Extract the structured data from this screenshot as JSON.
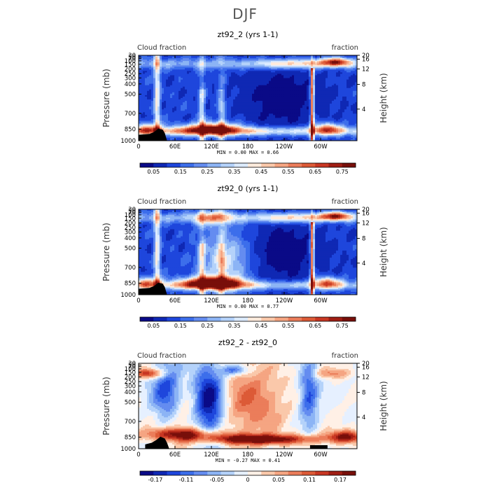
{
  "figure_title": "DJF",
  "chart_data": [
    {
      "type": "heatmap",
      "title": "zt92_2 (yrs 1-1)",
      "left_label": "Cloud fraction",
      "right_label": "fraction",
      "ylabel": "Pressure (mb)",
      "y2label": "Height (km)",
      "xticks": [
        "0",
        "60E",
        "120E",
        "180",
        "120W",
        "60W"
      ],
      "yticks": [
        "1000",
        "850",
        "700",
        "500",
        "400",
        "300",
        "250",
        "200",
        "150",
        "100",
        "70",
        "50",
        "30"
      ],
      "y2ticks": [
        "4",
        "8",
        "12",
        "16",
        "20"
      ],
      "stats": "MIN =     0.00   MAX =     0.66",
      "colorbar_labels": [
        "0.05",
        "0.15",
        "0.25",
        "0.35",
        "0.45",
        "0.55",
        "0.65",
        "0.75"
      ],
      "colors": [
        "#0a0a87",
        "#0f28b4",
        "#1e46dc",
        "#3c6eeb",
        "#648cf0",
        "#8cb4f5",
        "#b4d2fa",
        "#dcebff",
        "#ffebdc",
        "#fac8aa",
        "#f5a582",
        "#eb7d5a",
        "#dc5a37",
        "#c83723",
        "#a01e14",
        "#780f0a"
      ]
    },
    {
      "type": "heatmap",
      "title": "zt92_0 (yrs 1-1)",
      "left_label": "Cloud fraction",
      "right_label": "fraction",
      "ylabel": "Pressure (mb)",
      "y2label": "Height (km)",
      "xticks": [
        "0",
        "60E",
        "120E",
        "180",
        "120W",
        "60W"
      ],
      "yticks": [
        "1000",
        "850",
        "700",
        "500",
        "400",
        "300",
        "250",
        "200",
        "150",
        "100",
        "70",
        "50",
        "30"
      ],
      "y2ticks": [
        "4",
        "8",
        "12",
        "16",
        "20"
      ],
      "stats": "MIN =     0.00   MAX =     0.77",
      "colorbar_labels": [
        "0.05",
        "0.15",
        "0.25",
        "0.35",
        "0.45",
        "0.55",
        "0.65",
        "0.75"
      ],
      "colors": [
        "#0a0a87",
        "#0f28b4",
        "#1e46dc",
        "#3c6eeb",
        "#648cf0",
        "#8cb4f5",
        "#b4d2fa",
        "#dcebff",
        "#ffebdc",
        "#fac8aa",
        "#f5a582",
        "#eb7d5a",
        "#dc5a37",
        "#c83723",
        "#a01e14",
        "#780f0a"
      ]
    },
    {
      "type": "heatmap",
      "title": "zt92_2 - zt92_0",
      "left_label": "Cloud fraction",
      "right_label": "fraction",
      "ylabel": "Pressure (mb)",
      "y2label": "Height (km)",
      "xticks": [
        "0",
        "60E",
        "120E",
        "180",
        "120W",
        "60W"
      ],
      "yticks": [
        "1000",
        "850",
        "700",
        "500",
        "400",
        "300",
        "250",
        "200",
        "150",
        "100",
        "70",
        "50",
        "30"
      ],
      "y2ticks": [
        "4",
        "8",
        "12",
        "16",
        "20"
      ],
      "stats": "MIN =    -0.27   MAX =     0.41",
      "colorbar_labels": [
        "-0.17",
        "-0.11",
        "-0.05",
        "0",
        "0.05",
        "0.11",
        "0.17"
      ],
      "colors": [
        "#0a0a87",
        "#0f28b4",
        "#1e46dc",
        "#3c6eeb",
        "#648cf0",
        "#8cb4f5",
        "#b4d2fa",
        "#e6f0ff",
        "#fff0e6",
        "#fac8aa",
        "#f5a582",
        "#eb7d5a",
        "#dc5a37",
        "#c83723",
        "#a01e14",
        "#780f0a"
      ]
    }
  ]
}
